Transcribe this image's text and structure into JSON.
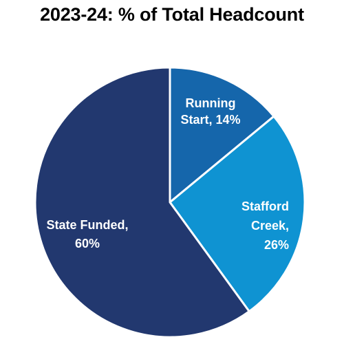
{
  "chart_data": {
    "type": "pie",
    "title": "2023-24: % of Total Headcount",
    "start_angle_deg": 0,
    "direction": "clockwise",
    "slices": [
      {
        "category": "Running Start",
        "value": 14,
        "label_lines": [
          "Running",
          "Start, 14%"
        ],
        "color": "#1566ab"
      },
      {
        "category": "Stafford Creek",
        "value": 26,
        "label_lines": [
          "Stafford",
          "Creek,",
          "26%"
        ],
        "color": "#0f93d2"
      },
      {
        "category": "State Funded",
        "value": 60,
        "label_lines": [
          "State Funded,",
          "60%"
        ],
        "color": "#22386f"
      }
    ]
  }
}
